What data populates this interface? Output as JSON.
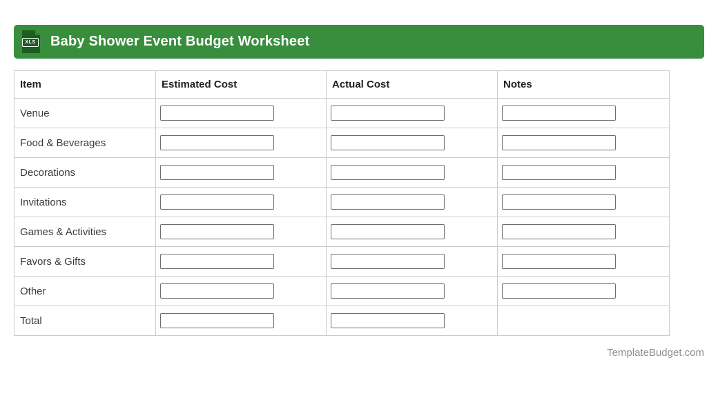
{
  "header": {
    "title": "Baby Shower Event Budget Worksheet",
    "file_icon_label": "XLS",
    "bar_color": "#388E3C",
    "icon_color": "#1B5E20"
  },
  "table": {
    "columns": [
      "Item",
      "Estimated Cost",
      "Actual Cost",
      "Notes"
    ],
    "rows": [
      {
        "item": "Venue",
        "estimated": "",
        "actual": "",
        "notes": ""
      },
      {
        "item": "Food & Beverages",
        "estimated": "",
        "actual": "",
        "notes": ""
      },
      {
        "item": "Decorations",
        "estimated": "",
        "actual": "",
        "notes": ""
      },
      {
        "item": "Invitations",
        "estimated": "",
        "actual": "",
        "notes": ""
      },
      {
        "item": "Games & Activities",
        "estimated": "",
        "actual": "",
        "notes": ""
      },
      {
        "item": "Favors & Gifts",
        "estimated": "",
        "actual": "",
        "notes": ""
      },
      {
        "item": "Other",
        "estimated": "",
        "actual": "",
        "notes": ""
      },
      {
        "item": "Total",
        "estimated": "",
        "actual": ""
      }
    ]
  },
  "footer": {
    "credit": "TemplateBudget.com"
  }
}
